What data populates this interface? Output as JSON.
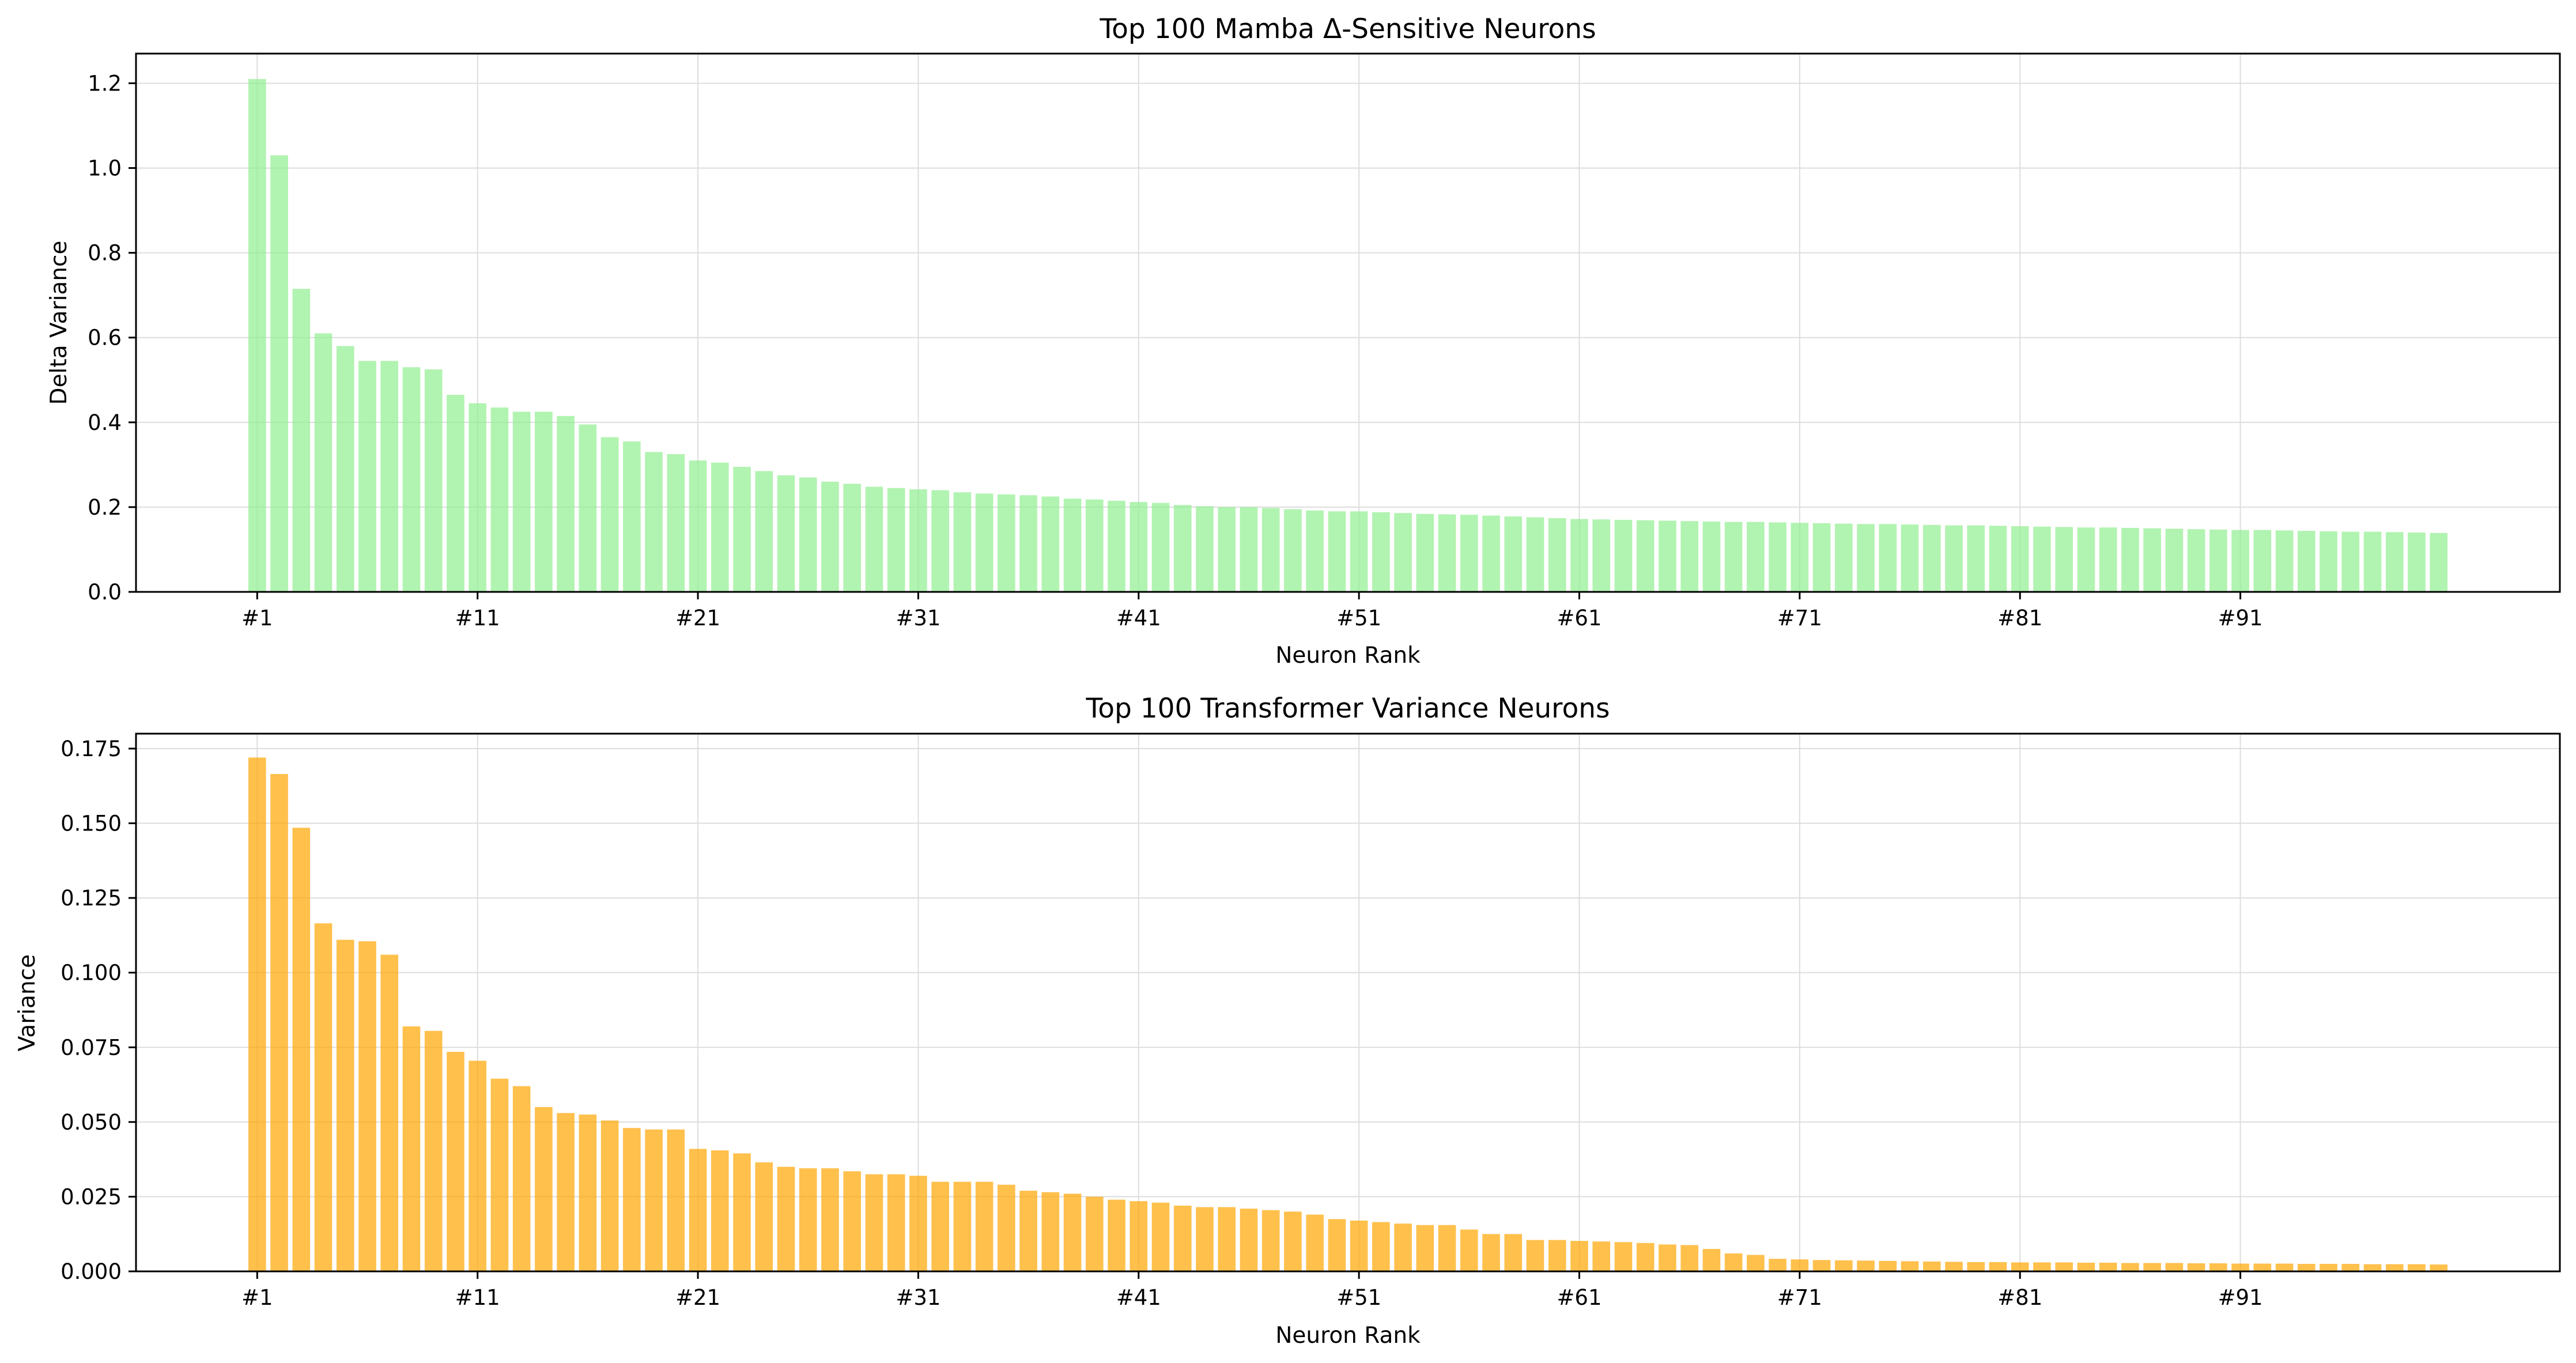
{
  "colors": {
    "mamba_bar": "#90EE90",
    "transformer_bar": "#FFA500",
    "grid": "#DDDDDD",
    "axis": "#000000"
  },
  "chart_data": [
    {
      "type": "bar",
      "title": "Top 100 Mamba Δ-Sensitive Neurons",
      "xlabel": "Neuron Rank",
      "ylabel": "Delta Variance",
      "ylim": [
        0,
        1.27
      ],
      "yticks": [
        "0.0",
        "0.2",
        "0.4",
        "0.6",
        "0.8",
        "1.0",
        "1.2"
      ],
      "xticks": [
        "#1",
        "#11",
        "#21",
        "#31",
        "#41",
        "#51",
        "#61",
        "#71",
        "#81",
        "#91"
      ],
      "grid": true,
      "bar_color": "#90EE90",
      "bar_opacity": 0.7,
      "values": [
        1.21,
        1.03,
        0.715,
        0.61,
        0.58,
        0.545,
        0.545,
        0.53,
        0.525,
        0.465,
        0.445,
        0.435,
        0.425,
        0.425,
        0.415,
        0.395,
        0.365,
        0.355,
        0.33,
        0.325,
        0.31,
        0.305,
        0.295,
        0.285,
        0.275,
        0.27,
        0.26,
        0.255,
        0.248,
        0.245,
        0.242,
        0.24,
        0.235,
        0.232,
        0.23,
        0.228,
        0.225,
        0.22,
        0.218,
        0.215,
        0.212,
        0.21,
        0.205,
        0.202,
        0.2,
        0.2,
        0.198,
        0.195,
        0.192,
        0.19,
        0.19,
        0.188,
        0.186,
        0.184,
        0.183,
        0.182,
        0.18,
        0.178,
        0.176,
        0.174,
        0.172,
        0.171,
        0.17,
        0.169,
        0.168,
        0.167,
        0.166,
        0.165,
        0.165,
        0.164,
        0.163,
        0.162,
        0.161,
        0.16,
        0.16,
        0.159,
        0.158,
        0.157,
        0.157,
        0.156,
        0.155,
        0.154,
        0.153,
        0.152,
        0.152,
        0.151,
        0.15,
        0.149,
        0.148,
        0.147,
        0.146,
        0.146,
        0.145,
        0.144,
        0.143,
        0.142,
        0.142,
        0.141,
        0.14,
        0.139
      ]
    },
    {
      "type": "bar",
      "title": "Top 100 Transformer Variance Neurons",
      "xlabel": "Neuron Rank",
      "ylabel": "Variance",
      "ylim": [
        0,
        0.18
      ],
      "yticks": [
        "0.000",
        "0.025",
        "0.050",
        "0.075",
        "0.100",
        "0.125",
        "0.150",
        "0.175"
      ],
      "xticks": [
        "#1",
        "#11",
        "#21",
        "#31",
        "#41",
        "#51",
        "#61",
        "#71",
        "#81",
        "#91"
      ],
      "grid": true,
      "bar_color": "#FFA500",
      "bar_opacity": 0.7,
      "values": [
        0.172,
        0.1665,
        0.1485,
        0.1165,
        0.111,
        0.1105,
        0.106,
        0.082,
        0.0805,
        0.0735,
        0.0705,
        0.0645,
        0.062,
        0.055,
        0.053,
        0.0525,
        0.0505,
        0.048,
        0.0475,
        0.0475,
        0.041,
        0.0405,
        0.0395,
        0.0365,
        0.035,
        0.0345,
        0.0345,
        0.0335,
        0.0325,
        0.0325,
        0.032,
        0.03,
        0.03,
        0.03,
        0.029,
        0.027,
        0.0265,
        0.026,
        0.025,
        0.024,
        0.0235,
        0.023,
        0.022,
        0.0215,
        0.0215,
        0.021,
        0.0205,
        0.02,
        0.019,
        0.0175,
        0.017,
        0.0165,
        0.016,
        0.0155,
        0.0155,
        0.014,
        0.0125,
        0.0125,
        0.0105,
        0.0105,
        0.0102,
        0.01,
        0.0098,
        0.0095,
        0.009,
        0.0088,
        0.0075,
        0.006,
        0.0055,
        0.0042,
        0.004,
        0.0038,
        0.0037,
        0.0036,
        0.0035,
        0.0034,
        0.0033,
        0.0032,
        0.0031,
        0.0031,
        0.003,
        0.003,
        0.003,
        0.0029,
        0.0029,
        0.0028,
        0.0028,
        0.0028,
        0.0027,
        0.0027,
        0.0026,
        0.0026,
        0.0026,
        0.0025,
        0.0025,
        0.0025,
        0.0024,
        0.0024,
        0.0024,
        0.0023
      ]
    }
  ]
}
